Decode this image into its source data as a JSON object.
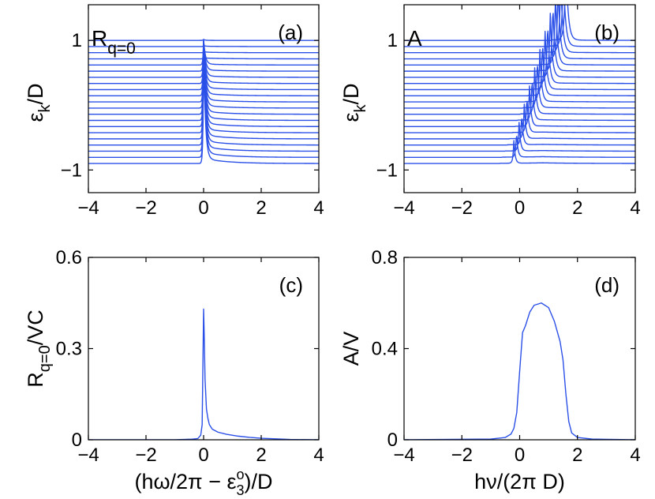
{
  "figure": {
    "colors": {
      "line": "#2b50e8",
      "axes": "#000000",
      "background": "#ffffff"
    }
  },
  "chart_data": [
    {
      "id": "a",
      "type": "line",
      "panel_label": "(a)",
      "inner_label": {
        "main": "R",
        "sub": "q=0"
      },
      "ylabel": {
        "main": "ε",
        "sub": "k",
        "rest": "/D"
      },
      "xlabel": "",
      "xlim": [
        -4,
        4
      ],
      "ylim": [
        -1.35,
        1.55
      ],
      "xticks": [
        -4,
        -2,
        0,
        2,
        4
      ],
      "xtick_labels": [
        "−4",
        "−2",
        "0",
        "2",
        "4"
      ],
      "yticks": [
        -1,
        1
      ],
      "ytick_labels": [
        "−1",
        "1"
      ],
      "waterfall": {
        "n_traces": 21,
        "baseline_start": -0.9,
        "baseline_step": 0.095,
        "shape": "sharp peak near 0, growing from bottom to top traces",
        "peak_center": 0.0,
        "peak_top": 0.85
      }
    },
    {
      "id": "b",
      "type": "line",
      "panel_label": "(b)",
      "inner_label": {
        "main": "A",
        "sub": ""
      },
      "ylabel": {
        "main": "ε",
        "sub": "k",
        "rest": "/D"
      },
      "xlabel": "",
      "xlim": [
        -4,
        4
      ],
      "ylim": [
        -1.35,
        1.55
      ],
      "xticks": [
        -4,
        -2,
        0,
        2,
        4
      ],
      "xtick_labels": [
        "−4",
        "−2",
        "0",
        "2",
        "4"
      ],
      "yticks": [
        -1,
        1
      ],
      "ytick_labels": [
        "−1",
        "1"
      ],
      "waterfall": {
        "n_traces": 21,
        "baseline_start": -0.9,
        "baseline_step": 0.095,
        "shape": "narrow peaks shifting from about -0.2 to 1.6 with increasing height",
        "peak_center_start": -0.2,
        "peak_center_end": 1.6
      }
    },
    {
      "id": "c",
      "type": "line",
      "panel_label": "(c)",
      "ylabel": {
        "main": "R",
        "sub": "q=0",
        "rest": "/VC"
      },
      "xlabel": {
        "main": "(hω/2π − ε",
        "sub": "3",
        "sup": "o",
        "rest": ")/D"
      },
      "xlim": [
        -4,
        4
      ],
      "ylim": [
        0,
        0.6
      ],
      "xticks": [
        -4,
        -2,
        0,
        2,
        4
      ],
      "xtick_labels": [
        "−4",
        "−2",
        "0",
        "2",
        "4"
      ],
      "yticks": [
        0,
        0.3,
        0.6
      ],
      "ytick_labels": [
        "0",
        "0.3",
        "0.6"
      ],
      "series": [
        {
          "name": "R_q=0",
          "x": [
            -4,
            -1,
            -0.4,
            -0.2,
            -0.1,
            -0.05,
            0,
            0.02,
            0.05,
            0.1,
            0.15,
            0.2,
            0.3,
            0.5,
            0.8,
            1.2,
            1.6,
            2,
            2.5,
            3,
            4
          ],
          "y": [
            0,
            0,
            0.002,
            0.004,
            0.015,
            0.05,
            0.43,
            0.35,
            0.2,
            0.1,
            0.07,
            0.05,
            0.035,
            0.025,
            0.018,
            0.012,
            0.008,
            0.005,
            0.003,
            0.001,
            0
          ]
        }
      ]
    },
    {
      "id": "d",
      "type": "line",
      "panel_label": "(d)",
      "ylabel": {
        "main": "A/V",
        "sub": "",
        "rest": ""
      },
      "xlabel": {
        "main": "hν/(2π D)",
        "sub": "",
        "sup": "",
        "rest": ""
      },
      "xlim": [
        -4,
        4
      ],
      "ylim": [
        0,
        0.8
      ],
      "xticks": [
        -4,
        -2,
        0,
        2,
        4
      ],
      "xtick_labels": [
        "−4",
        "−2",
        "0",
        "2",
        "4"
      ],
      "yticks": [
        0,
        0.4,
        0.8
      ],
      "ytick_labels": [
        "0",
        "0.4",
        "0.8"
      ],
      "series": [
        {
          "name": "A",
          "x": [
            -4,
            -1,
            -0.5,
            -0.3,
            -0.2,
            -0.1,
            0,
            0.1,
            0.2,
            0.35,
            0.5,
            0.75,
            1.0,
            1.2,
            1.4,
            1.5,
            1.6,
            1.7,
            1.8,
            2.0,
            2.5,
            4
          ],
          "y": [
            0,
            0.003,
            0.01,
            0.025,
            0.05,
            0.12,
            0.3,
            0.47,
            0.5,
            0.56,
            0.59,
            0.6,
            0.58,
            0.52,
            0.43,
            0.35,
            0.2,
            0.08,
            0.03,
            0.01,
            0.003,
            0
          ]
        }
      ]
    }
  ]
}
